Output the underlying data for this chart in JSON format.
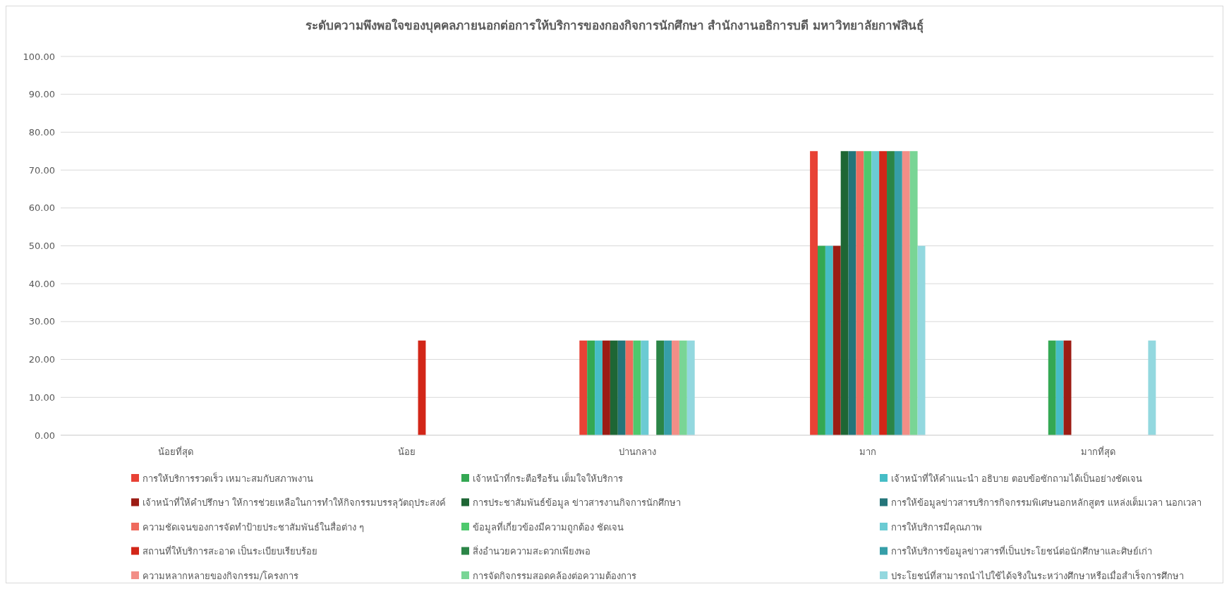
{
  "chart_data": {
    "type": "bar",
    "title": "ระดับความพึงพอใจของบุคคลภายนอกต่อการให้บริการของกองกิจการนักศึกษา  สำนักงานอธิการบดี  มหาวิทยาลัยกาฬสินธุ์",
    "categories": [
      "น้อยที่สุด",
      "น้อย",
      "ปานกลาง",
      "มาก",
      "มากที่สุด"
    ],
    "series": [
      {
        "name": "การให้บริการรวดเร็ว เหมาะสมกับสภาพงาน",
        "color": "#e84235",
        "values": [
          0,
          0,
          25,
          75,
          0
        ]
      },
      {
        "name": "เจ้าหน้าที่กระตือรือร้น เต็มใจให้บริการ",
        "color": "#34a853",
        "values": [
          0,
          0,
          25,
          50,
          25
        ]
      },
      {
        "name": "เจ้าหน้าที่ให้คำแนะนำ อธิบาย ตอบข้อซักถามได้เป็นอย่างชัดเจน",
        "color": "#46bdc6",
        "values": [
          0,
          0,
          25,
          50,
          25
        ]
      },
      {
        "name": "เจ้าหน้าที่ให้คำปรึกษา ให้การช่วยเหลือในการทำให้กิจกรรมบรรลุวัตถุประสงค์",
        "color": "#9c1c14",
        "values": [
          0,
          0,
          25,
          50,
          25
        ]
      },
      {
        "name": "การประชาสัมพันธ์ข้อมูล ข่าวสารงานกิจการนักศึกษา",
        "color": "#1e6634",
        "values": [
          0,
          0,
          25,
          75,
          0
        ]
      },
      {
        "name": "การให้ข้อมูลข่าวสารบริการกิจกรรมพิเศษนอกหลักสูตร แหล่งเต็มเวลา นอกเวลา",
        "color": "#24757a",
        "values": [
          0,
          0,
          25,
          75,
          0
        ]
      },
      {
        "name": "ความชัดเจนของการจัดทำป้ายประชาสัมพันธ์ในสื่อต่าง ๆ",
        "color": "#ef6a5d",
        "values": [
          0,
          0,
          25,
          75,
          0
        ]
      },
      {
        "name": "ข้อมูลที่เกี่ยวข้องมีความถูกต้อง ชัดเจน",
        "color": "#4ec96d",
        "values": [
          0,
          0,
          25,
          75,
          0
        ]
      },
      {
        "name": "การให้บริการมีคุณภาพ",
        "color": "#6bcbd3",
        "values": [
          0,
          0,
          25,
          75,
          0
        ]
      },
      {
        "name": "สถานที่ให้บริการสะอาด เป็นระเบียบเรียบร้อย",
        "color": "#d22618",
        "values": [
          0,
          25,
          0,
          75,
          0
        ]
      },
      {
        "name": "สิ่งอำนวยความสะดวกเพียงพอ",
        "color": "#2b8547",
        "values": [
          0,
          0,
          25,
          75,
          0
        ]
      },
      {
        "name": "การให้บริการข้อมูลข่าวสารที่เป็นประโยชน์ต่อนักศึกษาและศิษย์เก่า",
        "color": "#369ea8",
        "values": [
          0,
          0,
          25,
          75,
          0
        ]
      },
      {
        "name": "ความหลากหลายของกิจกรรม/โครงการ",
        "color": "#f28e87",
        "values": [
          0,
          0,
          25,
          75,
          0
        ]
      },
      {
        "name": "การจัดกิจกรรมสอดคล้องต่อความต้องการ",
        "color": "#79d595",
        "values": [
          0,
          0,
          25,
          75,
          0
        ]
      },
      {
        "name": "ประโยชน์ที่สามารถนำไปใช้ได้จริงในระหว่างศึกษาหรือเมื่อสำเร็จการศึกษา",
        "color": "#93d8df",
        "values": [
          0,
          0,
          25,
          50,
          25
        ]
      }
    ],
    "ylim": [
      0,
      100
    ],
    "yticks": [
      {
        "value": 0,
        "label": "0.00"
      },
      {
        "value": 10,
        "label": "10.00"
      },
      {
        "value": 20,
        "label": "20.00"
      },
      {
        "value": 30,
        "label": "30.00"
      },
      {
        "value": 40,
        "label": "40.00"
      },
      {
        "value": 50,
        "label": "50.00"
      },
      {
        "value": 60,
        "label": "60.00"
      },
      {
        "value": 70,
        "label": "70.00"
      },
      {
        "value": 80,
        "label": "80.00"
      },
      {
        "value": 90,
        "label": "90.00"
      },
      {
        "value": 100,
        "label": "100.00"
      }
    ],
    "grid": "y",
    "legend": "bottom"
  }
}
